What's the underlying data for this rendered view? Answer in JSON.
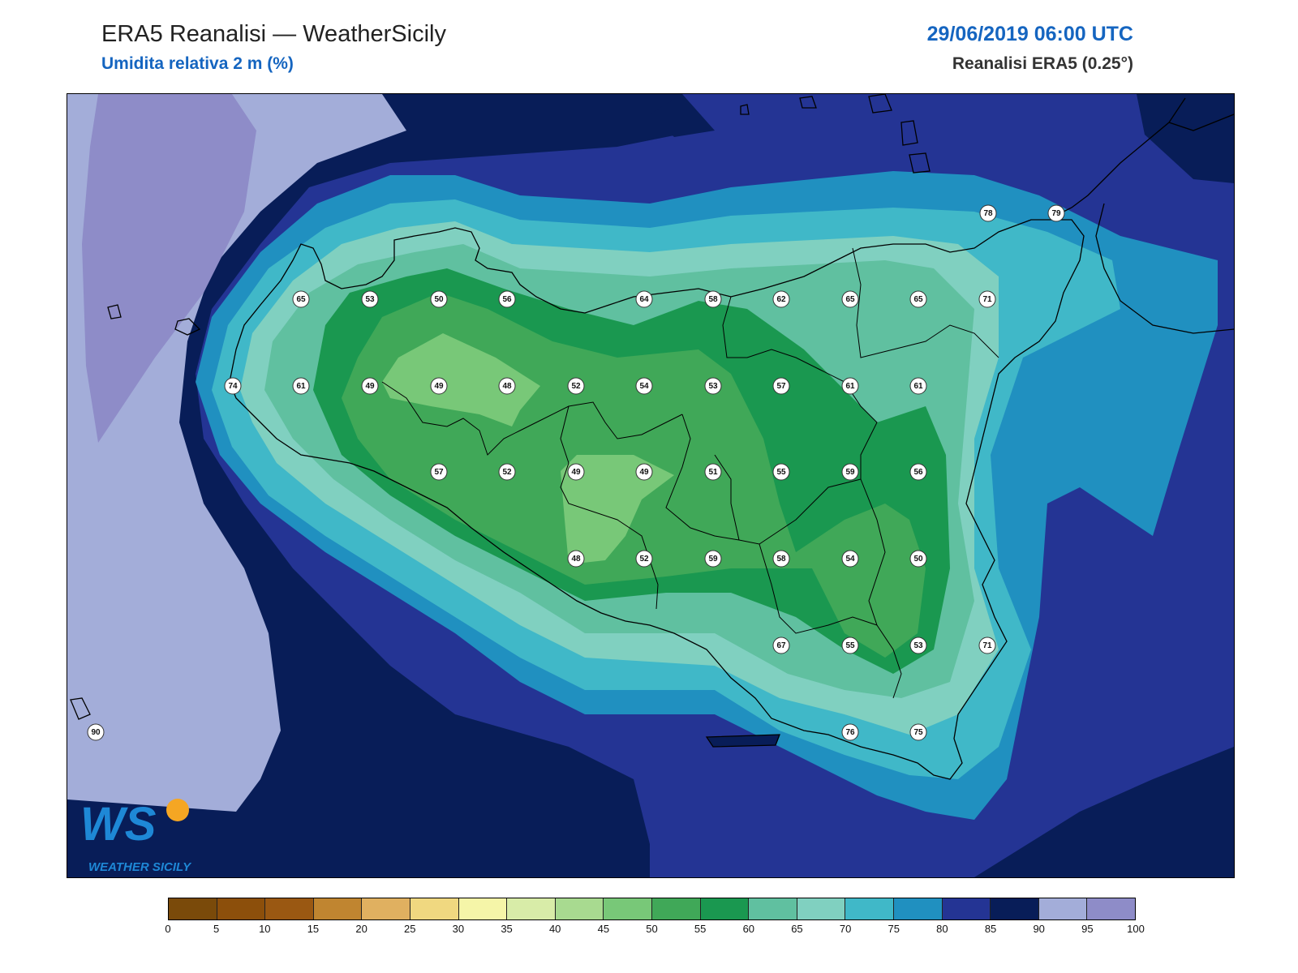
{
  "header": {
    "title": "ERA5 Reanalisi — WeatherSicily",
    "subtitle": "Umidita relativa 2 m (%)",
    "datetime": "29/06/2019 06:00 UTC",
    "source": "Reanalisi ERA5 (0.25°)"
  },
  "colorbar": {
    "ticks": [
      "0",
      "5",
      "10",
      "15",
      "20",
      "25",
      "30",
      "35",
      "40",
      "45",
      "50",
      "55",
      "60",
      "65",
      "70",
      "75",
      "80",
      "85",
      "90",
      "95",
      "100"
    ],
    "colors": [
      "#7a4a0a",
      "#8c4f0b",
      "#9a5812",
      "#c08530",
      "#e0b060",
      "#f0d880",
      "#f5f5a8",
      "#d8eca8",
      "#a8da90",
      "#78c878",
      "#40a858",
      "#1a9850",
      "#60c0a0",
      "#80d0c0",
      "#40b8c8",
      "#2090c0",
      "#243494",
      "#081d58",
      "#a3add9",
      "#8e8cc8"
    ]
  },
  "stations": [
    {
      "value": "78"
    },
    {
      "value": "79"
    },
    {
      "value": "65"
    },
    {
      "value": "53"
    },
    {
      "value": "50"
    },
    {
      "value": "56"
    },
    {
      "value": "64"
    },
    {
      "value": "58"
    },
    {
      "value": "62"
    },
    {
      "value": "65"
    },
    {
      "value": "65"
    },
    {
      "value": "71"
    },
    {
      "value": "74"
    },
    {
      "value": "61"
    },
    {
      "value": "49"
    },
    {
      "value": "49"
    },
    {
      "value": "48"
    },
    {
      "value": "52"
    },
    {
      "value": "54"
    },
    {
      "value": "53"
    },
    {
      "value": "57"
    },
    {
      "value": "61"
    },
    {
      "value": "61"
    },
    {
      "value": "57"
    },
    {
      "value": "52"
    },
    {
      "value": "49"
    },
    {
      "value": "49"
    },
    {
      "value": "51"
    },
    {
      "value": "55"
    },
    {
      "value": "59"
    },
    {
      "value": "56"
    },
    {
      "value": "48"
    },
    {
      "value": "52"
    },
    {
      "value": "59"
    },
    {
      "value": "58"
    },
    {
      "value": "54"
    },
    {
      "value": "50"
    },
    {
      "value": "67"
    },
    {
      "value": "55"
    },
    {
      "value": "53"
    },
    {
      "value": "71"
    },
    {
      "value": "90"
    },
    {
      "value": "76"
    },
    {
      "value": "75"
    }
  ],
  "logo": {
    "mark": "WS",
    "text": "WEATHER SICILY"
  }
}
